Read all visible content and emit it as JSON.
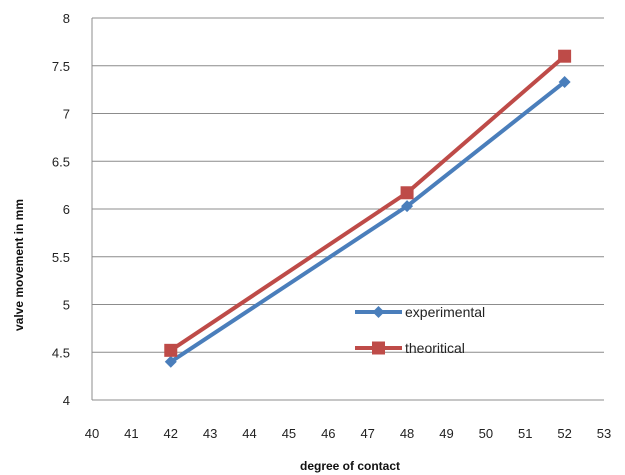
{
  "chart_data": {
    "type": "line",
    "xlabel": "degree of contact",
    "ylabel": "valve movement in mm",
    "xlim": [
      40,
      53
    ],
    "ylim": [
      4,
      8
    ],
    "x_ticks": [
      "40",
      "41",
      "42",
      "43",
      "44",
      "45",
      "46",
      "47",
      "48",
      "49",
      "50",
      "51",
      "52",
      "53"
    ],
    "y_ticks": [
      "4",
      "4.5",
      "5",
      "5.5",
      "6",
      "6.5",
      "7",
      "7.5",
      "8"
    ],
    "grid": "horizontal",
    "legend_position": "center-right",
    "series": [
      {
        "name": "experimental",
        "color": "#4a7ebb",
        "marker": "diamond",
        "x": [
          42,
          48,
          52
        ],
        "y": [
          4.4,
          6.03,
          7.33
        ]
      },
      {
        "name": "theoritical",
        "color": "#be4b48",
        "marker": "square",
        "x": [
          42,
          48,
          52
        ],
        "y": [
          4.52,
          6.17,
          7.6
        ]
      }
    ]
  }
}
